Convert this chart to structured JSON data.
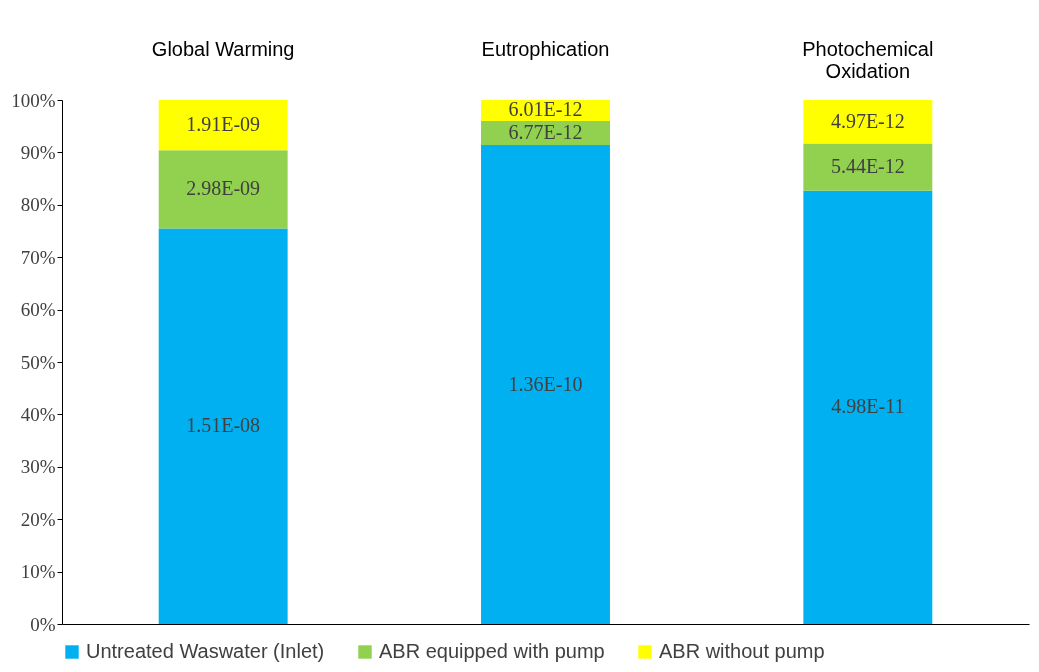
{
  "chart_data": {
    "type": "bar",
    "stacked": true,
    "categories": [
      "Global Warming",
      "Eutrophication",
      "Photochemical Oxidation"
    ],
    "series": [
      {
        "name": "Untreated Waswater (Inlet)",
        "color": "#00b0f0",
        "values": [
          75.5,
          91.4,
          82.7
        ]
      },
      {
        "name": "ABR equipped with pump",
        "color": "#92d050",
        "values": [
          14.9,
          4.6,
          9.0
        ]
      },
      {
        "name": "ABR without pump",
        "color": "#ffff00",
        "values": [
          9.6,
          4.0,
          8.3
        ]
      }
    ],
    "annotations": [
      "1.51E-08",
      "1.36E-10",
      "4.98E-11",
      "2.98E-09",
      "6.77E-12",
      "5.44E-12",
      "1.91E-09",
      "6.01E-12",
      "4.97E-12"
    ],
    "ylim": [
      0,
      100
    ],
    "yticks": [
      {
        "value": 0,
        "label": "0%"
      },
      {
        "value": 10,
        "label": "10%"
      },
      {
        "value": 20,
        "label": "20%"
      },
      {
        "value": 30,
        "label": "30%"
      },
      {
        "value": 40,
        "label": "40%"
      },
      {
        "value": 50,
        "label": "50%"
      },
      {
        "value": 60,
        "label": "60%"
      },
      {
        "value": 70,
        "label": "70%"
      },
      {
        "value": 80,
        "label": "80%"
      },
      {
        "value": 90,
        "label": "90%"
      },
      {
        "value": 100,
        "label": "100%"
      }
    ],
    "grid": false,
    "legend": "bottom"
  }
}
